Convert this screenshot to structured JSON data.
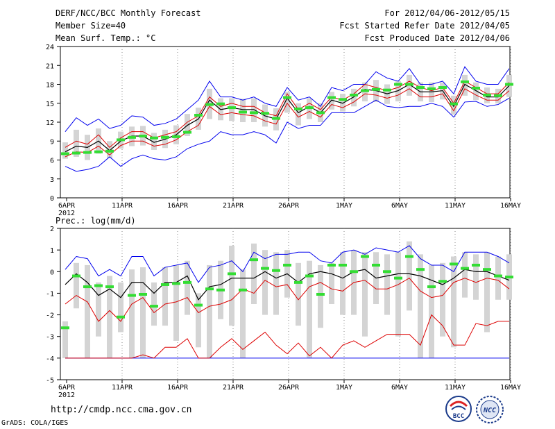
{
  "header": {
    "title": "DERF/NCC/BCC Monthly Forecast",
    "member_size": "Member Size=40",
    "variable": "Mean Surf. Temp.: °C",
    "period": "For 2012/04/06-2012/05/15",
    "started": "Fcst Started Refer Date 2012/04/05",
    "produced": "Fcst Produced Date 2012/04/06"
  },
  "footer": {
    "url": "http://cmdp.ncc.cma.gov.cn",
    "credit": "GrADS: COLA/IGES",
    "logo1_text": "BCC",
    "logo2_text": "NCC"
  },
  "colors": {
    "max": "#0000ee",
    "min": "#0000ee",
    "mean": "#000000",
    "pct": "#dd0000",
    "obs": "#33dd33",
    "box": "#d4d4d4"
  },
  "chart_data": [
    {
      "type": "line",
      "title": "Mean Surf. Temp.: °C",
      "ylim": [
        0,
        24
      ],
      "yticks": [
        "0",
        "3",
        "6",
        "9",
        "12",
        "15",
        "18",
        "21",
        "24"
      ],
      "xticks": [
        "6APR",
        "11APR",
        "16APR",
        "21APR",
        "26APR",
        "1MAY",
        "6MAY",
        "11MAY",
        "16MAY"
      ],
      "xtick_sub": "2012",
      "xrange": [
        0,
        39
      ],
      "series": [
        {
          "name": "max",
          "values": [
            10.5,
            12.7,
            11.5,
            12.5,
            11,
            11.5,
            13,
            12.8,
            11.5,
            11.8,
            12.5,
            14,
            15.5,
            18.5,
            16,
            16,
            15.5,
            16,
            15,
            14.5,
            17.5,
            15.5,
            16,
            14.5,
            17.5,
            17,
            18,
            18,
            20,
            19,
            18.5,
            20.5,
            18,
            18,
            18.5,
            16.5,
            20.8,
            18.5,
            18,
            18,
            20.5
          ]
        },
        {
          "name": "p90",
          "values": [
            8,
            9,
            8.5,
            10,
            8,
            9.5,
            10.5,
            10.5,
            9.5,
            10,
            10.5,
            12,
            13,
            16,
            14.5,
            15,
            14.5,
            14.5,
            13.5,
            13,
            16.5,
            14,
            15,
            14,
            16,
            15.5,
            16.5,
            18,
            17.5,
            17,
            17.5,
            18.5,
            17.5,
            17,
            17.5,
            15,
            18.5,
            17.5,
            16.5,
            16.5,
            18.3
          ]
        },
        {
          "name": "mean",
          "values": [
            7.3,
            8.2,
            8,
            9,
            7.5,
            9,
            9.8,
            9.8,
            8.8,
            9.3,
            10,
            11.5,
            12.5,
            15.5,
            14,
            14.3,
            14,
            14,
            13,
            12.5,
            15.8,
            13.5,
            14.5,
            13.5,
            15.5,
            15,
            16,
            17.2,
            17,
            16.5,
            17,
            18,
            16.8,
            16.8,
            17,
            14.5,
            18,
            17,
            16,
            16,
            17.8
          ]
        },
        {
          "name": "p10",
          "values": [
            6.5,
            7.3,
            7.2,
            8.2,
            6.8,
            8.3,
            9,
            9,
            8.2,
            8.5,
            9.2,
            10.5,
            11.5,
            14.5,
            13.2,
            13.5,
            13.2,
            13,
            12.2,
            11.7,
            15,
            12.8,
            13.7,
            12.8,
            14.8,
            14.3,
            15.2,
            16.5,
            16.3,
            15.8,
            16.3,
            17.3,
            16,
            16,
            16.5,
            13.8,
            17.3,
            16.3,
            15.5,
            15.5,
            17
          ]
        },
        {
          "name": "min",
          "values": [
            5,
            4.2,
            4.5,
            5,
            6.5,
            5,
            6.2,
            6.8,
            6.2,
            6,
            6.5,
            7.8,
            8.5,
            9,
            10.5,
            10,
            10,
            10.5,
            10,
            8.7,
            12,
            11,
            11.5,
            11.5,
            13.5,
            13.5,
            13.5,
            14.5,
            15.5,
            14.5,
            14.3,
            14.5,
            14.5,
            15,
            14.5,
            12.8,
            15.2,
            15.3,
            14.5,
            14.8,
            15.8
          ]
        },
        {
          "name": "obs",
          "values": [
            7,
            7.1,
            7.2,
            7.3,
            7.4,
            9.2,
            9.6,
            9.8,
            9.5,
            9.6,
            9.7,
            10.4,
            13.1,
            14.8,
            14.9,
            14.3,
            13.6,
            13.5,
            13.4,
            12.6,
            15.9,
            14.1,
            14.3,
            13.5,
            15.9,
            15.6,
            16.3,
            17,
            17.2,
            17.1,
            18,
            18,
            17.5,
            17.3,
            17.5,
            14.9,
            18.4,
            17.4,
            16.3,
            16.2,
            18
          ]
        },
        {
          "name": "box_lo",
          "values": [
            6.2,
            6.5,
            6,
            7,
            6.3,
            7.8,
            8.2,
            8.3,
            7.6,
            7.9,
            8.5,
            9.8,
            10.8,
            12.5,
            12.3,
            12.2,
            12,
            12,
            11.3,
            10.7,
            13.5,
            11.5,
            12.5,
            12,
            14,
            13.7,
            14.5,
            15.3,
            15.2,
            14.9,
            15.3,
            16.2,
            15.3,
            15.2,
            15.6,
            13.2,
            16.2,
            15.5,
            15,
            15,
            16
          ]
        },
        {
          "name": "box_hi",
          "values": [
            8.8,
            10.8,
            10,
            11,
            9,
            10.5,
            11.3,
            11.4,
            10.3,
            10.8,
            11.5,
            13.3,
            14.3,
            17.3,
            15.8,
            15.8,
            15.7,
            15.8,
            14.8,
            14.2,
            16.8,
            15,
            15.8,
            15,
            16.8,
            16.5,
            17.3,
            18.3,
            18.7,
            18,
            18.5,
            19.5,
            18.3,
            18.3,
            18.3,
            16.2,
            19.5,
            18.3,
            17.5,
            17.3,
            19.5
          ]
        }
      ]
    },
    {
      "type": "line",
      "title": "Prec.: log(mm/d)",
      "ylim": [
        -5,
        2
      ],
      "yticks": [
        "-5",
        "-4",
        "-3",
        "-2",
        "-1",
        "0",
        "1",
        "2"
      ],
      "xticks": [
        "6APR",
        "11APR",
        "16APR",
        "21APR",
        "26APR",
        "1MAY",
        "6MAY",
        "11MAY",
        "16MAY"
      ],
      "xtick_sub": "2012",
      "xrange": [
        0,
        39
      ],
      "series": [
        {
          "name": "max",
          "values": [
            0.1,
            0.7,
            0.6,
            -0.2,
            0.1,
            -0.2,
            0.7,
            0.7,
            -0.2,
            0.2,
            0.3,
            0.4,
            -0.5,
            0.2,
            0.3,
            0.5,
            0,
            0.9,
            0.6,
            0.8,
            0.8,
            0.9,
            0.9,
            0.5,
            0.4,
            0.9,
            1,
            0.8,
            1.1,
            1,
            0.9,
            1.2,
            0.6,
            0.3,
            0.3,
            0,
            0.9,
            0.9,
            0.9,
            0.7,
            0.4
          ]
        },
        {
          "name": "mean",
          "values": [
            -0.6,
            -0.1,
            -0.5,
            -1.1,
            -0.8,
            -1.2,
            -0.5,
            -0.5,
            -1,
            -0.5,
            -0.5,
            -0.2,
            -1.3,
            -0.7,
            -0.6,
            -0.3,
            -0.3,
            -0.3,
            0,
            -0.3,
            -0.1,
            -0.5,
            -0.1,
            0,
            -0.1,
            -0.3,
            0,
            0.1,
            -0.3,
            -0.2,
            -0.1,
            -0.1,
            -0.2,
            -0.4,
            -0.6,
            -0.3,
            0.1,
            0,
            0,
            -0.2,
            -0.4
          ]
        },
        {
          "name": "p90",
          "values": [
            -1.5,
            -1.1,
            -1.4,
            -2.3,
            -1.8,
            -2.3,
            -1.5,
            -1.2,
            -1.9,
            -1.5,
            -1.4,
            -1.2,
            -1.9,
            -1.6,
            -1.5,
            -1.3,
            -0.8,
            -1,
            -0.4,
            -0.7,
            -0.6,
            -1.3,
            -0.7,
            -0.5,
            -0.8,
            -0.9,
            -0.5,
            -0.4,
            -0.8,
            -0.8,
            -0.6,
            -0.3,
            -0.9,
            -1.2,
            -1.1,
            -0.5,
            -0.3,
            -0.5,
            -0.3,
            -0.4,
            -0.8
          ]
        },
        {
          "name": "p10",
          "values": [
            -4,
            -4,
            -4,
            -4,
            -4,
            -4,
            -4,
            -3.85,
            -4,
            -3.5,
            -3.5,
            -3.1,
            -4,
            -4,
            -3.5,
            -3.1,
            -3.6,
            -3.2,
            -2.8,
            -3.4,
            -3.8,
            -3.3,
            -3.9,
            -3.5,
            -4,
            -3.4,
            -3.2,
            -3.5,
            -3.2,
            -2.9,
            -2.9,
            -2.9,
            -3.4,
            -2,
            -2.5,
            -3.4,
            -3.4,
            -2.4,
            -2.5,
            -2.3,
            -2.3
          ]
        },
        {
          "name": "min",
          "values": [
            -4,
            -4,
            -4,
            -4,
            -4,
            -4,
            -4,
            -4,
            -4,
            -4,
            -4,
            -4,
            -4,
            -4,
            -4,
            -4,
            -4,
            -4,
            -4,
            -4,
            -4,
            -4,
            -4,
            -4,
            -4,
            -4,
            -4,
            -4,
            -4,
            -4,
            -4,
            -4,
            -4,
            -4,
            -4,
            -4,
            -4,
            -4,
            -4,
            -4,
            -4
          ]
        },
        {
          "name": "obs",
          "values": [
            -2.6,
            -0.2,
            -0.7,
            -0.65,
            -0.7,
            -2.1,
            -1.1,
            -1.05,
            -1.6,
            -0.6,
            -0.55,
            -0.5,
            -1.55,
            -0.8,
            -0.85,
            -0.1,
            -0.85,
            0.55,
            0.15,
            0.05,
            0.3,
            -0.5,
            -0.2,
            -1.05,
            0.3,
            0.3,
            0,
            0.7,
            0.3,
            0,
            -0.3,
            0.7,
            0.1,
            -0.7,
            -0.45,
            0.35,
            0.15,
            0.3,
            0.1,
            -0.2,
            -0.25
          ]
        },
        {
          "name": "box_lo",
          "values": [
            -4,
            -1.7,
            -4,
            -3,
            -4,
            -2.8,
            -4,
            -4,
            -2.5,
            -2.5,
            -3.2,
            -2,
            -3.5,
            -4,
            -2.2,
            -2.5,
            -4,
            -1.5,
            -2,
            -2,
            -1.2,
            -2.5,
            -4,
            -2.6,
            -1.5,
            -2,
            -2,
            -3,
            -1.5,
            -2,
            -3,
            -1.8,
            -4,
            -4,
            -3,
            -3.5,
            -1.2,
            -1.3,
            -2.8,
            -1.3,
            -1.3
          ]
        },
        {
          "name": "box_hi",
          "values": [
            -2.3,
            0.4,
            0.3,
            -0.5,
            -0.2,
            -0.5,
            0.1,
            0.2,
            -0.5,
            0.2,
            0.3,
            0.5,
            -1,
            0.3,
            0.5,
            1.2,
            0.1,
            1.3,
            1,
            0.9,
            1,
            0.4,
            0.5,
            0.3,
            0.4,
            0.9,
            1,
            0.9,
            0.9,
            0.8,
            0.9,
            1.4,
            0.8,
            0.3,
            0.4,
            0.7,
            0.9,
            0.8,
            0.9,
            0.7,
            0.8
          ]
        }
      ]
    }
  ]
}
